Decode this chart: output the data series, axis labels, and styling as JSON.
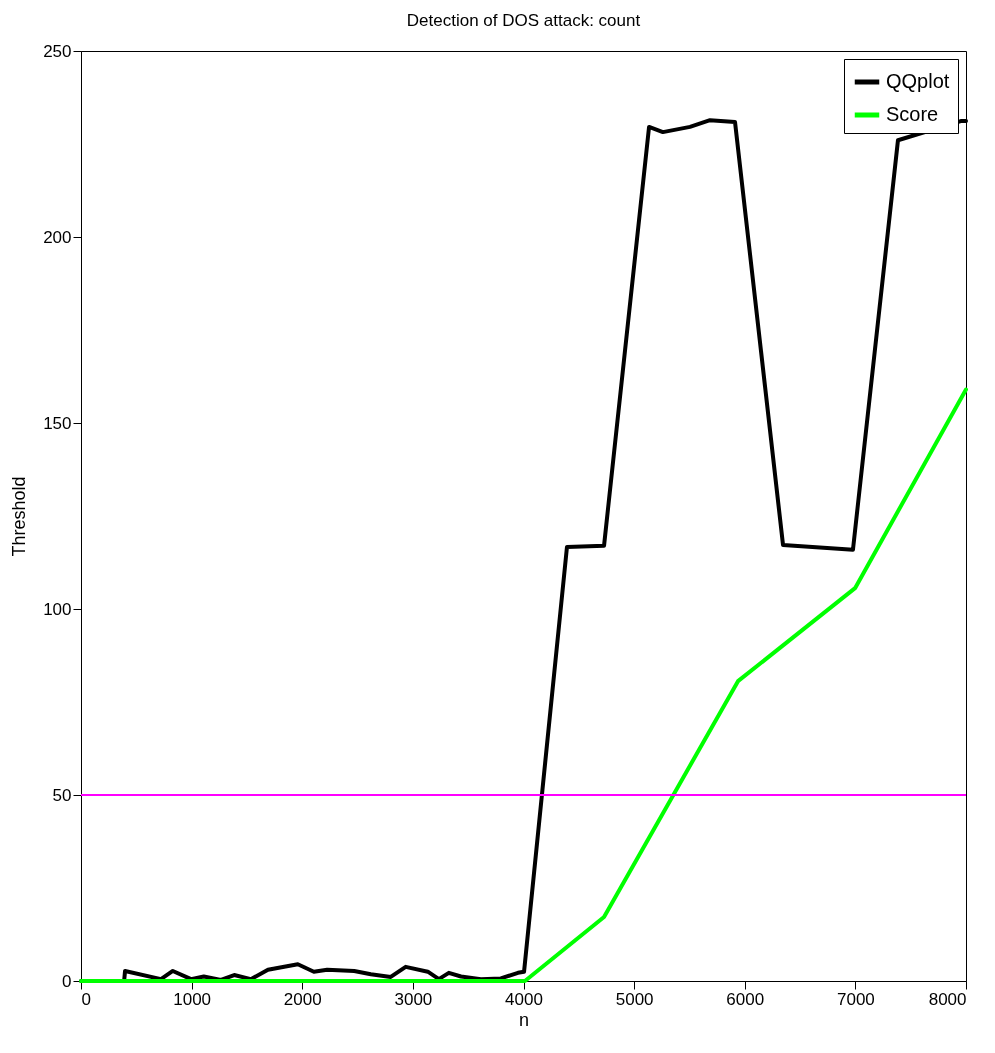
{
  "chart_data": {
    "type": "line",
    "title": "Detection of DOS attack: count",
    "xlabel": "n",
    "ylabel": "Threshold",
    "xlim": [
      0,
      8000
    ],
    "xticks": [
      0,
      1000,
      2000,
      3000,
      4000,
      5000,
      6000,
      7000,
      8000
    ],
    "ylim": [
      0,
      250
    ],
    "yticks": [
      0,
      50,
      100,
      150,
      200,
      250
    ],
    "grid": false,
    "legend": "top right",
    "line_style": "solid",
    "marker": "none",
    "series": [
      {
        "name": "QQplot",
        "color": "#000000",
        "x": [
          0,
          390,
          398,
          723,
          830,
          995,
          1110,
          1265,
          1385,
          1535,
          1690,
          1960,
          2105,
          2225,
          2470,
          2620,
          2800,
          2935,
          3135,
          3235,
          3325,
          3435,
          3615,
          3795,
          3950,
          4005,
          4393,
          4728,
          5135,
          5260,
          5505,
          5686,
          5912,
          6346,
          6978,
          7385,
          7960,
          8000
        ],
        "values": [
          0,
          0,
          2.7,
          0.5,
          2.7,
          0.5,
          1.2,
          0.3,
          1.6,
          0.5,
          3,
          4.5,
          2.5,
          3,
          2.7,
          1.8,
          1.1,
          3.8,
          2.5,
          0.5,
          2.2,
          1.2,
          0.5,
          0.7,
          2.2,
          2.5,
          116.7,
          117,
          229.6,
          228.2,
          229.6,
          231.4,
          230.9,
          117.2,
          115.9,
          226,
          231.2,
          231.2
        ]
      },
      {
        "name": "Score",
        "color": "#00ff00",
        "x": [
          0,
          4013,
          4728,
          5939,
          6997,
          8000
        ],
        "values": [
          0,
          0,
          17.2,
          80.6,
          105.6,
          159
        ]
      }
    ],
    "ref_lines": [
      {
        "axis": "y",
        "value": 50,
        "color": "#ff00ff",
        "line_style": "solid"
      }
    ]
  }
}
